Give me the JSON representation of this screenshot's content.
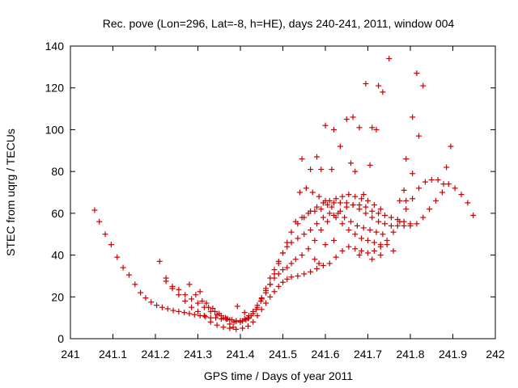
{
  "chart_data": {
    "type": "scatter",
    "title": "Rec. pove (Lon=296, Lat=-8, h=HE), days 240-241, 2011, window 004",
    "xlabel": "GPS time / Days of year 2011",
    "ylabel": "STEC from uqrg / TECUs",
    "xlim": [
      241,
      242
    ],
    "ylim": [
      0,
      140
    ],
    "x_ticks": [
      241,
      241.1,
      241.2,
      241.3,
      241.4,
      241.5,
      241.6,
      241.7,
      241.8,
      241.9,
      242
    ],
    "x_tick_labels": [
      "241",
      "241.1",
      "241.2",
      "241.3",
      "241.4",
      "241.5",
      "241.6",
      "241.7",
      "241.8",
      "241.9",
      "242"
    ],
    "y_ticks": [
      0,
      20,
      40,
      60,
      80,
      100,
      120,
      140
    ],
    "y_tick_labels": [
      "0",
      "20",
      "40",
      "60",
      "80",
      "100",
      "120",
      "140"
    ],
    "grid": false,
    "legend": "none",
    "marker": "plus",
    "color": "#cc0000",
    "points": [
      [
        241.057,
        61.5
      ],
      [
        241.068,
        56
      ],
      [
        241.082,
        50
      ],
      [
        241.096,
        45
      ],
      [
        241.11,
        39
      ],
      [
        241.124,
        34
      ],
      [
        241.138,
        30.5
      ],
      [
        241.152,
        26
      ],
      [
        241.165,
        22
      ],
      [
        241.177,
        19.5
      ],
      [
        241.19,
        17.5
      ],
      [
        241.203,
        16
      ],
      [
        241.216,
        15
      ],
      [
        241.229,
        14.3
      ],
      [
        241.242,
        13.5
      ],
      [
        241.255,
        13
      ],
      [
        241.268,
        12.5
      ],
      [
        241.28,
        12
      ],
      [
        241.292,
        11.5
      ],
      [
        241.305,
        11
      ],
      [
        241.318,
        10.5
      ],
      [
        241.33,
        10
      ],
      [
        241.342,
        10
      ],
      [
        241.355,
        9.5
      ],
      [
        241.367,
        9.3
      ],
      [
        241.38,
        9
      ],
      [
        241.39,
        8.5
      ],
      [
        241.4,
        8.6
      ],
      [
        241.41,
        9.5
      ],
      [
        241.42,
        11
      ],
      [
        241.43,
        13
      ],
      [
        241.44,
        16
      ],
      [
        241.45,
        19.5
      ],
      [
        241.46,
        23
      ],
      [
        241.47,
        26
      ],
      [
        241.48,
        29
      ],
      [
        241.49,
        31
      ],
      [
        241.5,
        33
      ],
      [
        241.51,
        34
      ],
      [
        241.52,
        36
      ],
      [
        241.53,
        38
      ],
      [
        241.545,
        40
      ],
      [
        241.56,
        43
      ],
      [
        241.575,
        47
      ],
      [
        241.59,
        52
      ],
      [
        241.605,
        56
      ],
      [
        241.62,
        59
      ],
      [
        241.635,
        61
      ],
      [
        241.65,
        63
      ],
      [
        241.665,
        64
      ],
      [
        241.68,
        64
      ],
      [
        241.695,
        63
      ],
      [
        241.71,
        61
      ],
      [
        241.725,
        60
      ],
      [
        241.74,
        59
      ],
      [
        241.755,
        58
      ],
      [
        241.77,
        57
      ],
      [
        241.785,
        56
      ],
      [
        241.8,
        54
      ],
      [
        241.815,
        55
      ],
      [
        241.83,
        58
      ],
      [
        241.845,
        62
      ],
      [
        241.86,
        66
      ],
      [
        241.875,
        70
      ],
      [
        241.89,
        74
      ],
      [
        241.905,
        72
      ],
      [
        241.92,
        69
      ],
      [
        241.935,
        65
      ],
      [
        241.948,
        59
      ],
      [
        241.21,
        37
      ],
      [
        241.225,
        29
      ],
      [
        241.24,
        24
      ],
      [
        241.255,
        21
      ],
      [
        241.27,
        18
      ],
      [
        241.285,
        15
      ],
      [
        241.3,
        13
      ],
      [
        241.315,
        11
      ],
      [
        241.33,
        8
      ],
      [
        241.345,
        6.5
      ],
      [
        241.36,
        5.5
      ],
      [
        241.375,
        5
      ],
      [
        241.39,
        4.5
      ],
      [
        241.405,
        5
      ],
      [
        241.418,
        6
      ],
      [
        241.43,
        8
      ],
      [
        241.44,
        11
      ],
      [
        241.45,
        14
      ],
      [
        241.46,
        17
      ],
      [
        241.47,
        20
      ],
      [
        241.48,
        22.5
      ],
      [
        241.49,
        25
      ],
      [
        241.5,
        27
      ],
      [
        241.51,
        28.5
      ],
      [
        241.52,
        29.5
      ],
      [
        241.535,
        30
      ],
      [
        241.55,
        31
      ],
      [
        241.565,
        32
      ],
      [
        241.58,
        33.5
      ],
      [
        241.595,
        35
      ],
      [
        241.61,
        36
      ],
      [
        241.625,
        39
      ],
      [
        241.64,
        42
      ],
      [
        241.655,
        44
      ],
      [
        241.67,
        43
      ],
      [
        241.685,
        42
      ],
      [
        241.7,
        41
      ],
      [
        241.715,
        42
      ],
      [
        241.73,
        44
      ],
      [
        241.745,
        47
      ],
      [
        241.76,
        51
      ],
      [
        241.775,
        56
      ],
      [
        241.79,
        62
      ],
      [
        241.805,
        67
      ],
      [
        241.82,
        72
      ],
      [
        241.835,
        75
      ],
      [
        241.85,
        76
      ],
      [
        241.865,
        76
      ],
      [
        241.878,
        74
      ],
      [
        241.225,
        27.5
      ],
      [
        241.24,
        25
      ],
      [
        241.255,
        23.5
      ],
      [
        241.27,
        21
      ],
      [
        241.285,
        19
      ],
      [
        241.3,
        17
      ],
      [
        241.315,
        15
      ],
      [
        241.33,
        13
      ],
      [
        241.345,
        11.5
      ],
      [
        241.36,
        10
      ],
      [
        241.375,
        9
      ],
      [
        241.39,
        8.3
      ],
      [
        241.405,
        8.5
      ],
      [
        241.418,
        9.7
      ],
      [
        241.43,
        12
      ],
      [
        241.44,
        15
      ],
      [
        241.45,
        19
      ],
      [
        241.46,
        24
      ],
      [
        241.47,
        29
      ],
      [
        241.48,
        33
      ],
      [
        241.49,
        37
      ],
      [
        241.5,
        41
      ],
      [
        241.51,
        44
      ],
      [
        241.52,
        46
      ],
      [
        241.535,
        48
      ],
      [
        241.55,
        50
      ],
      [
        241.565,
        52
      ],
      [
        241.58,
        55
      ],
      [
        241.595,
        58
      ],
      [
        241.61,
        60
      ],
      [
        241.625,
        58
      ],
      [
        241.64,
        55
      ],
      [
        241.655,
        52
      ],
      [
        241.67,
        50
      ],
      [
        241.685,
        48
      ],
      [
        241.7,
        47
      ],
      [
        241.715,
        46
      ],
      [
        241.73,
        45
      ],
      [
        241.745,
        45
      ],
      [
        241.28,
        26
      ],
      [
        241.295,
        21
      ],
      [
        241.31,
        18
      ],
      [
        241.325,
        15
      ],
      [
        241.34,
        13
      ],
      [
        241.355,
        11
      ],
      [
        241.37,
        9.5
      ],
      [
        241.385,
        8
      ],
      [
        241.4,
        8
      ],
      [
        241.413,
        9
      ],
      [
        241.425,
        11
      ],
      [
        241.437,
        14
      ],
      [
        241.448,
        18
      ],
      [
        241.46,
        22
      ],
      [
        241.47,
        26
      ],
      [
        241.48,
        31
      ],
      [
        241.49,
        36
      ],
      [
        241.5,
        41
      ],
      [
        241.51,
        46
      ],
      [
        241.52,
        51
      ],
      [
        241.535,
        55
      ],
      [
        241.55,
        58
      ],
      [
        241.565,
        61
      ],
      [
        241.58,
        63
      ],
      [
        241.595,
        65
      ],
      [
        241.61,
        66
      ],
      [
        241.625,
        67
      ],
      [
        241.64,
        68
      ],
      [
        241.655,
        69
      ],
      [
        241.67,
        68
      ],
      [
        241.685,
        67
      ],
      [
        241.7,
        66
      ],
      [
        241.715,
        64
      ],
      [
        241.73,
        62
      ],
      [
        241.53,
        56
      ],
      [
        241.545,
        58
      ],
      [
        241.56,
        60
      ],
      [
        241.575,
        61
      ],
      [
        241.59,
        62
      ],
      [
        241.605,
        64
      ],
      [
        241.62,
        65
      ],
      [
        241.635,
        65
      ],
      [
        241.65,
        65
      ],
      [
        241.665,
        64
      ],
      [
        241.68,
        62
      ],
      [
        241.695,
        60
      ],
      [
        241.71,
        58
      ],
      [
        241.725,
        56
      ],
      [
        241.74,
        55
      ],
      [
        241.755,
        54
      ],
      [
        241.77,
        54
      ],
      [
        241.785,
        54
      ],
      [
        241.8,
        55
      ],
      [
        241.54,
        70
      ],
      [
        241.555,
        72
      ],
      [
        241.57,
        70
      ],
      [
        241.585,
        68
      ],
      [
        241.6,
        66
      ],
      [
        241.615,
        63
      ],
      [
        241.63,
        60
      ],
      [
        241.645,
        58
      ],
      [
        241.66,
        56
      ],
      [
        241.675,
        54
      ],
      [
        241.69,
        53
      ],
      [
        241.705,
        52
      ],
      [
        241.72,
        51
      ],
      [
        241.735,
        50
      ],
      [
        241.305,
        22.5
      ],
      [
        241.32,
        17
      ],
      [
        241.335,
        14.5
      ],
      [
        241.35,
        12
      ],
      [
        241.365,
        10
      ],
      [
        241.375,
        7
      ],
      [
        241.383,
        5.5
      ],
      [
        241.393,
        15.5
      ],
      [
        241.41,
        12.5
      ],
      [
        241.42,
        10
      ],
      [
        241.545,
        86
      ],
      [
        241.565,
        81
      ],
      [
        241.58,
        87
      ],
      [
        241.6,
        102
      ],
      [
        241.62,
        100
      ],
      [
        241.635,
        92
      ],
      [
        241.65,
        105
      ],
      [
        241.665,
        106
      ],
      [
        241.68,
        101
      ],
      [
        241.695,
        122
      ],
      [
        241.71,
        101
      ],
      [
        241.72,
        100
      ],
      [
        241.725,
        121
      ],
      [
        241.735,
        118
      ],
      [
        241.75,
        134
      ],
      [
        241.79,
        86
      ],
      [
        241.805,
        106
      ],
      [
        241.815,
        127
      ],
      [
        241.82,
        97
      ],
      [
        241.83,
        121
      ],
      [
        241.895,
        92
      ],
      [
        241.885,
        82
      ],
      [
        241.805,
        79
      ],
      [
        241.59,
        81
      ],
      [
        241.615,
        81
      ],
      [
        241.66,
        84
      ],
      [
        241.67,
        80
      ],
      [
        241.705,
        83
      ],
      [
        241.69,
        69
      ],
      [
        241.62,
        47
      ],
      [
        241.575,
        38
      ],
      [
        241.585,
        36
      ],
      [
        241.6,
        45
      ],
      [
        241.68,
        40
      ],
      [
        241.71,
        38
      ],
      [
        241.73,
        40
      ],
      [
        241.76,
        42
      ],
      [
        241.775,
        66
      ],
      [
        241.785,
        71
      ],
      [
        241.79,
        66
      ]
    ]
  }
}
